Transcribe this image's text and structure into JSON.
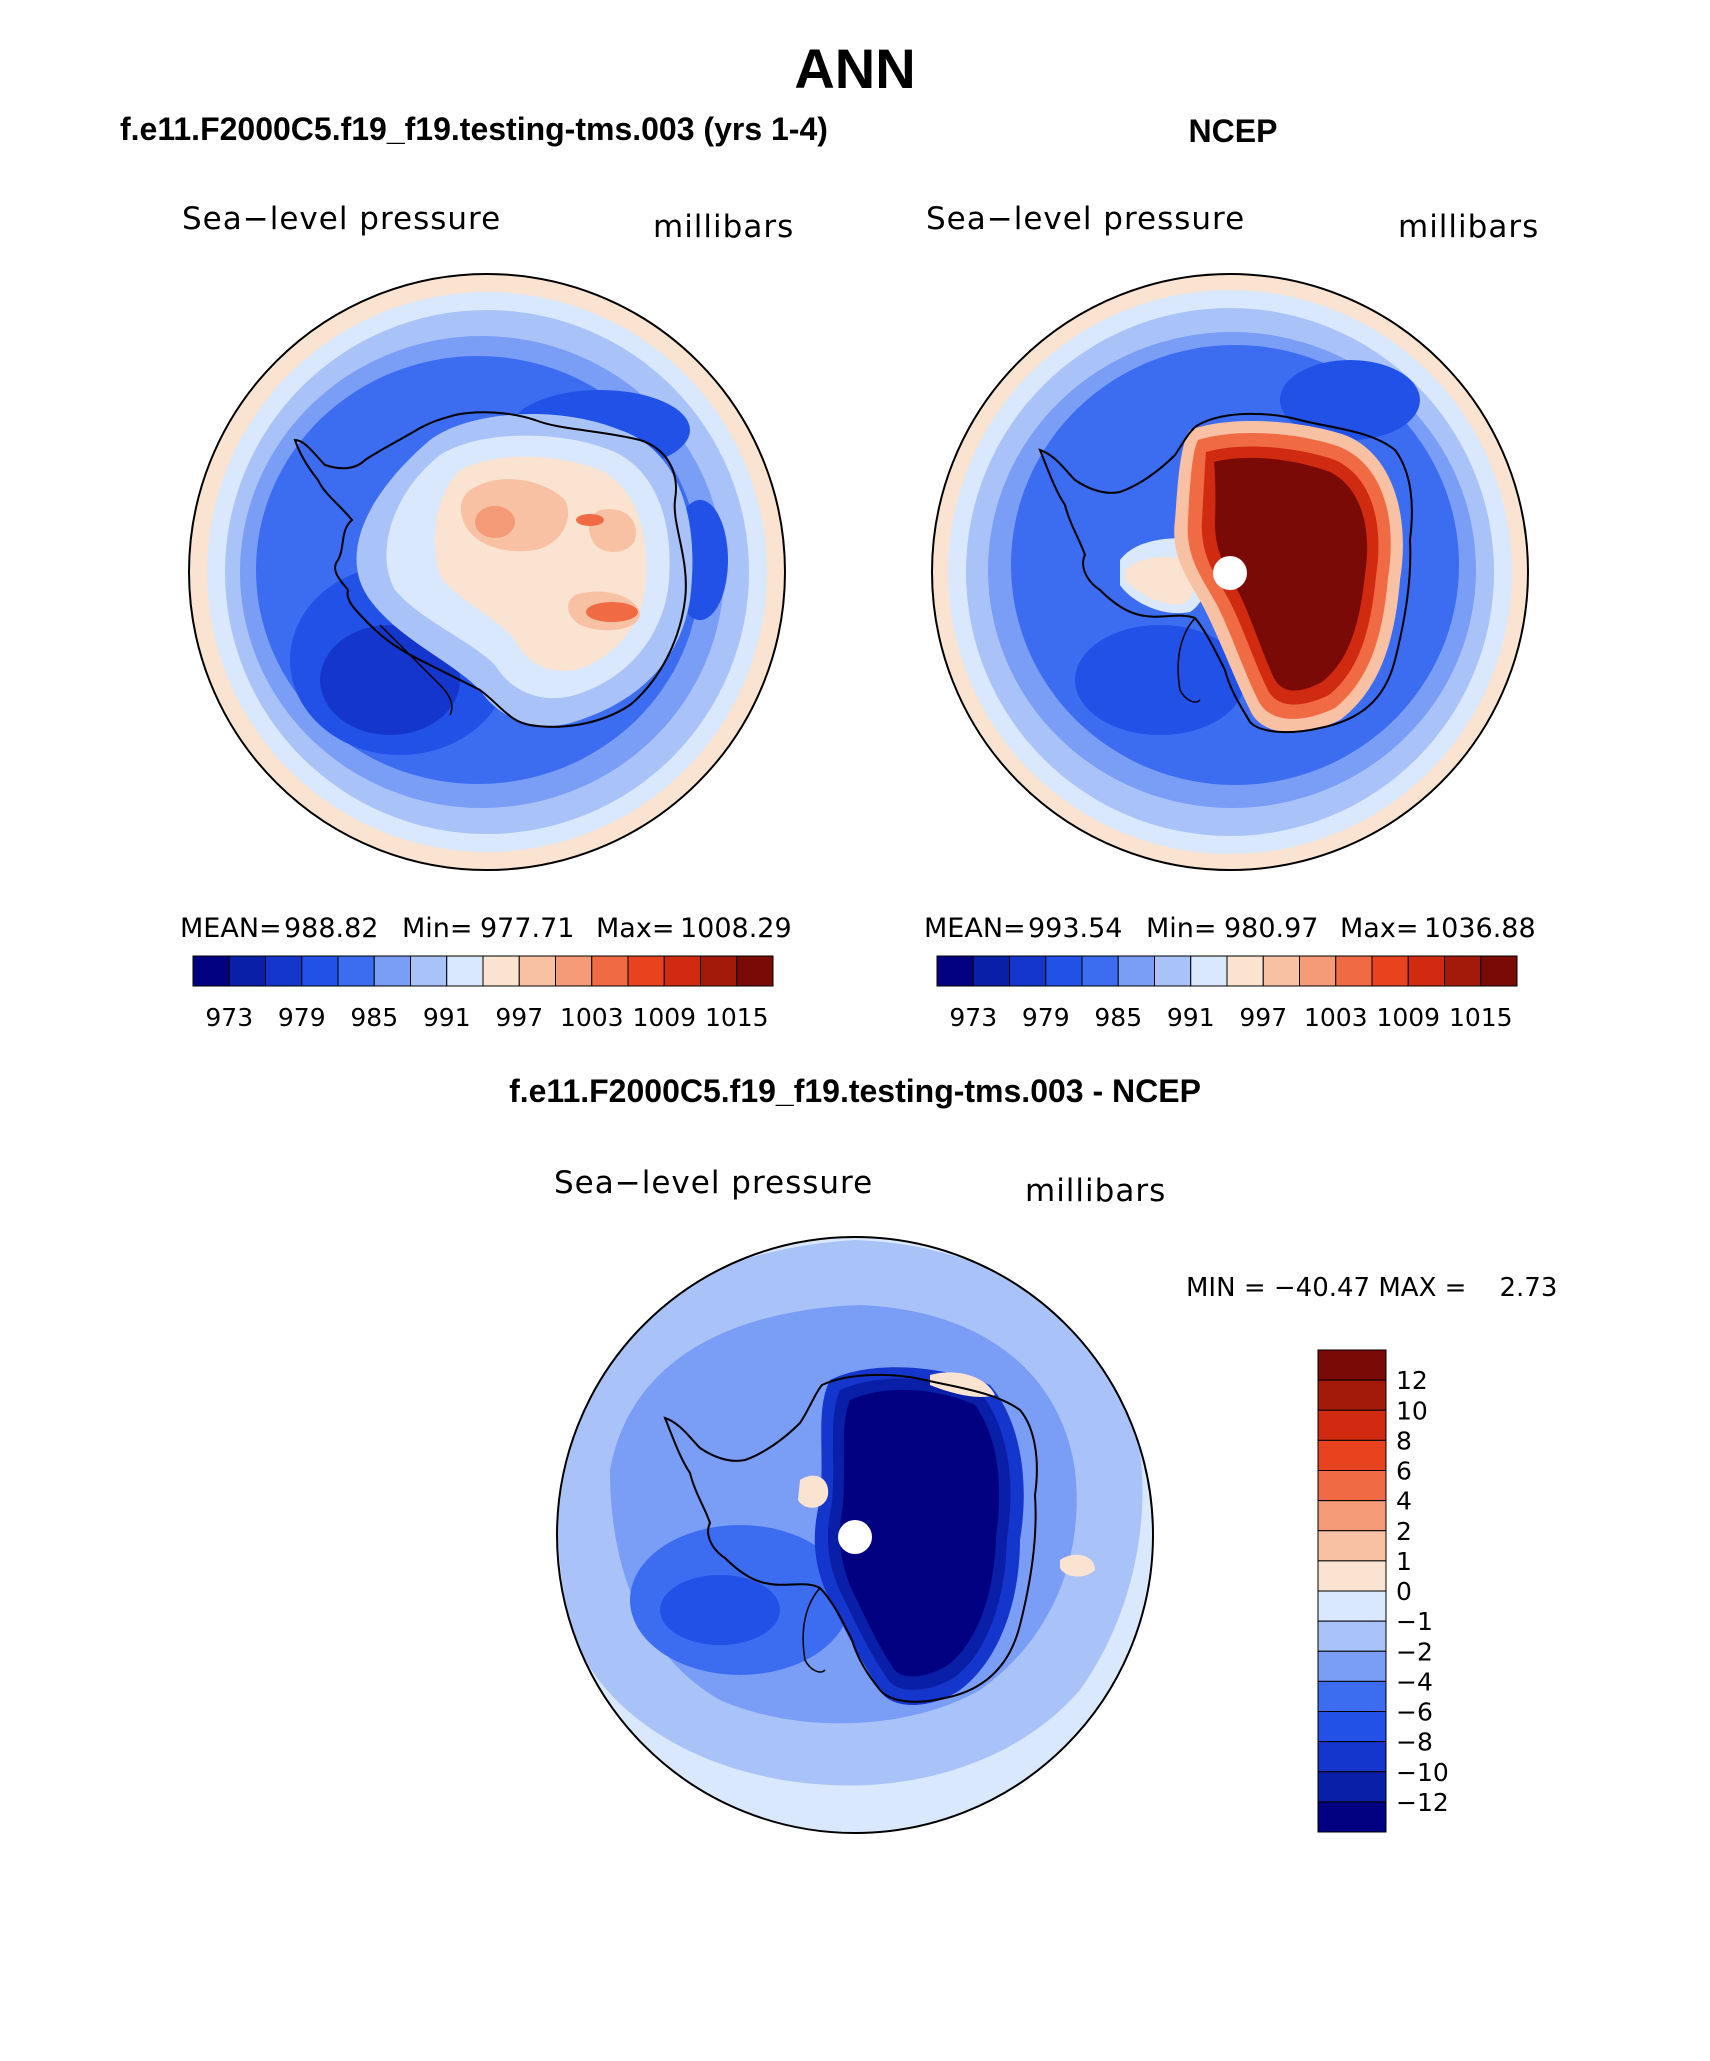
{
  "title": "ANN",
  "panels": [
    {
      "id": "model",
      "case_title": "f.e11.F2000C5.f19_f19.testing-tms.003 (yrs 1-4)",
      "left_label": "Sea−level pressure",
      "right_label": "millibars",
      "stats": {
        "mean": "988.82",
        "min": "977.71",
        "max": "1008.29"
      },
      "stats_text": {
        "mean_label": "MEAN=",
        "min_label": "Min=",
        "max_label": "Max="
      },
      "pole_marker": false
    },
    {
      "id": "obs",
      "case_title": "NCEP",
      "left_label": "Sea−level pressure",
      "right_label": "millibars",
      "stats": {
        "mean": "993.54",
        "min": "980.97",
        "max": "1036.88"
      },
      "stats_text": {
        "mean_label": "MEAN=",
        "min_label": "Min=",
        "max_label": "Max="
      },
      "pole_marker": true
    },
    {
      "id": "diff",
      "case_title": "f.e11.F2000C5.f19_f19.testing-tms.003 - NCEP",
      "left_label": "Sea−level pressure",
      "right_label": "millibars",
      "minmax_text": "MIN = −40.47 MAX =    2.73",
      "pole_marker": true
    }
  ],
  "colorbar_field": {
    "colors": [
      "#000080",
      "#0a1fa8",
      "#1436cc",
      "#2151e6",
      "#3c6cf0",
      "#7a9df5",
      "#a9c3f9",
      "#d9e8fc",
      "#fbe3d2",
      "#f9c1a4",
      "#f49a76",
      "#f06b44",
      "#e8431f",
      "#d02a10",
      "#a31a0a",
      "#7a0a05"
    ],
    "tick_labels": [
      "973",
      "979",
      "985",
      "991",
      "997",
      "1003",
      "1009",
      "1015"
    ]
  },
  "colorbar_diff": {
    "colors": [
      "#000080",
      "#0a1fa8",
      "#1436cc",
      "#2151e6",
      "#3c6cf0",
      "#7a9df5",
      "#a9c3f9",
      "#d9e8fc",
      "#fbe3d2",
      "#f9c1a4",
      "#f49a76",
      "#f06b44",
      "#e8431f",
      "#d02a10",
      "#a31a0a",
      "#7a0a05"
    ],
    "tick_labels": [
      "12",
      "10",
      "8",
      "6",
      "4",
      "2",
      "1",
      "0",
      "−1",
      "−2",
      "−4",
      "−6",
      "−8",
      "−10",
      "−12"
    ]
  }
}
